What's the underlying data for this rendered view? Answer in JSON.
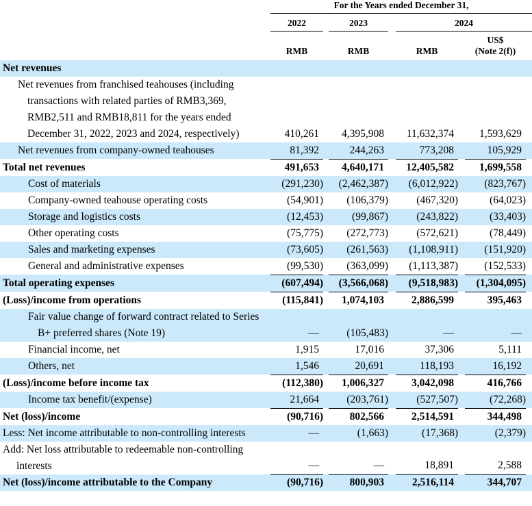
{
  "colors": {
    "row_highlight": "#CBE9FA",
    "rule": "#000000",
    "text": "#000000"
  },
  "header": {
    "title": "For the Years ended December 31,",
    "year_2022": "2022",
    "year_2023": "2023",
    "year_2024": "2024",
    "rmb_2022": "RMB",
    "rmb_2023": "RMB",
    "rmb_2024": "RMB",
    "usd": "US$",
    "usd_note": "(Note 2(f))"
  },
  "rows": [
    {
      "label": "Net revenues",
      "indent": 0,
      "hang": false,
      "bold": true,
      "highlight": true,
      "underline": false,
      "values": [
        "",
        "",
        "",
        ""
      ]
    },
    {
      "label": "Net revenues from franchised teahouses (including transactions with related parties of RMB3,369, RMB2,511 and RMB18,811 for the years ended December 31, 2022, 2023 and 2024, respectively)",
      "indent": 1,
      "hang": false,
      "bold": false,
      "highlight": false,
      "underline": false,
      "values": [
        "410,261",
        "4,395,908",
        "11,632,374",
        "1,593,629"
      ]
    },
    {
      "label": "Net revenues from company-owned teahouses",
      "indent": 1,
      "hang": false,
      "bold": false,
      "highlight": true,
      "underline": true,
      "values": [
        "81,392",
        "244,263",
        "773,208",
        "105,929"
      ]
    },
    {
      "label": "Total net revenues",
      "indent": 0,
      "hang": false,
      "bold": true,
      "highlight": false,
      "underline": false,
      "values": [
        "491,653",
        "4,640,171",
        "12,405,582",
        "1,699,558"
      ]
    },
    {
      "label": "Cost of materials",
      "indent": 2,
      "hang": false,
      "bold": false,
      "highlight": true,
      "underline": false,
      "values": [
        "(291,230)",
        "(2,462,387)",
        "(6,012,922)",
        "(823,767)"
      ]
    },
    {
      "label": "Company-owned teahouse operating costs",
      "indent": 2,
      "hang": false,
      "bold": false,
      "highlight": false,
      "underline": false,
      "values": [
        "(54,901)",
        "(106,379)",
        "(467,320)",
        "(64,023)"
      ]
    },
    {
      "label": "Storage and logistics costs",
      "indent": 2,
      "hang": false,
      "bold": false,
      "highlight": true,
      "underline": false,
      "values": [
        "(12,453)",
        "(99,867)",
        "(243,822)",
        "(33,403)"
      ]
    },
    {
      "label": "Other operating costs",
      "indent": 2,
      "hang": false,
      "bold": false,
      "highlight": false,
      "underline": false,
      "values": [
        "(75,775)",
        "(272,773)",
        "(572,621)",
        "(78,449)"
      ]
    },
    {
      "label": "Sales and marketing expenses",
      "indent": 2,
      "hang": false,
      "bold": false,
      "highlight": true,
      "underline": false,
      "values": [
        "(73,605)",
        "(261,563)",
        "(1,108,911)",
        "(151,920)"
      ]
    },
    {
      "label": "General and administrative expenses",
      "indent": 2,
      "hang": false,
      "bold": false,
      "highlight": false,
      "underline": true,
      "values": [
        "(99,530)",
        "(363,099)",
        "(1,113,387)",
        "(152,533)"
      ]
    },
    {
      "label": "Total operating expenses",
      "indent": 0,
      "hang": false,
      "bold": true,
      "highlight": true,
      "underline": true,
      "values": [
        "(607,494)",
        "(3,566,068)",
        "(9,518,983)",
        "(1,304,095)"
      ]
    },
    {
      "label": "(Loss)/income from operations",
      "indent": 0,
      "hang": false,
      "bold": true,
      "highlight": false,
      "underline": false,
      "values": [
        "(115,841)",
        "1,074,103",
        "2,886,599",
        "395,463"
      ]
    },
    {
      "label": "Fair value change of forward contract related to Series B+ preferred shares (Note 19)",
      "indent": 2,
      "hang": false,
      "bold": false,
      "highlight": true,
      "underline": false,
      "values": [
        "—",
        "(105,483)",
        "—",
        "—"
      ]
    },
    {
      "label": "Financial income, net",
      "indent": 2,
      "hang": false,
      "bold": false,
      "highlight": false,
      "underline": false,
      "values": [
        "1,915",
        "17,016",
        "37,306",
        "5,111"
      ]
    },
    {
      "label": "Others, net",
      "indent": 2,
      "hang": false,
      "bold": false,
      "highlight": true,
      "underline": true,
      "values": [
        "1,546",
        "20,691",
        "118,193",
        "16,192"
      ]
    },
    {
      "label": "(Loss)/income before income tax",
      "indent": 0,
      "hang": false,
      "bold": true,
      "highlight": false,
      "underline": false,
      "values": [
        "(112,380)",
        "1,006,327",
        "3,042,098",
        "416,766"
      ]
    },
    {
      "label": "Income tax benefit/(expense)",
      "indent": 2,
      "hang": false,
      "bold": false,
      "highlight": true,
      "underline": true,
      "values": [
        "21,664",
        "(203,761)",
        "(527,507)",
        "(72,268)"
      ]
    },
    {
      "label": "Net (loss)/income",
      "indent": 0,
      "hang": false,
      "bold": true,
      "highlight": false,
      "underline": false,
      "values": [
        "(90,716)",
        "802,566",
        "2,514,591",
        "344,498"
      ]
    },
    {
      "label": "Less: Net income attributable to non-controlling interests",
      "indent": 0,
      "hang": true,
      "bold": false,
      "highlight": true,
      "underline": false,
      "values": [
        "—",
        "(1,663)",
        "(17,368)",
        "(2,379)"
      ]
    },
    {
      "label": "Add: Net loss attributable to redeemable non-controlling interests",
      "indent": 0,
      "hang": true,
      "bold": false,
      "highlight": false,
      "underline": true,
      "values": [
        "—",
        "—",
        "18,891",
        "2,588"
      ]
    },
    {
      "label": "Net (loss)/income attributable to the Company",
      "indent": 0,
      "hang": false,
      "bold": true,
      "highlight": true,
      "underline": false,
      "values": [
        "(90,716)",
        "800,903",
        "2,516,114",
        "344,707"
      ]
    }
  ]
}
